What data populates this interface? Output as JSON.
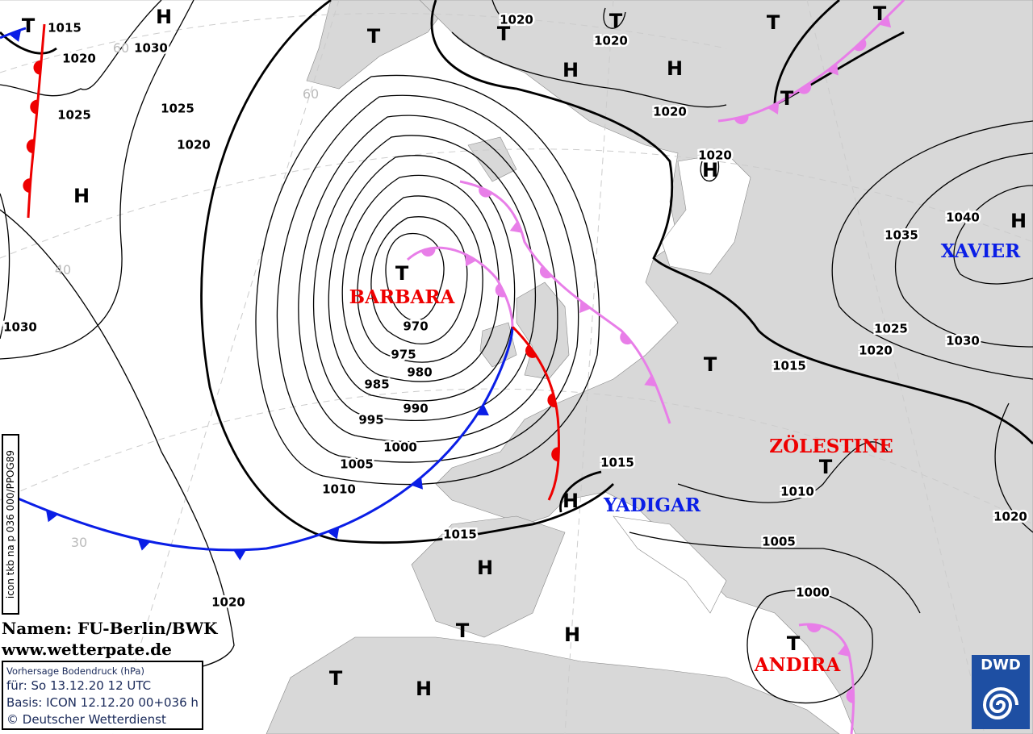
{
  "map": {
    "background": "#ffffff",
    "land_color": "#d8d8d8",
    "colors": {
      "cold_front": "#0a1ee6",
      "warm_front": "#ee0000",
      "occlusion": "#e87ee8",
      "low_name": "#ee0000",
      "high_name": "#0a1ee6"
    },
    "isobar_labels": [
      "1015",
      "1020",
      "1025",
      "1030",
      "1025",
      "1020",
      "1030",
      "970",
      "975",
      "980",
      "985",
      "990",
      "995",
      "1000",
      "1005",
      "1010",
      "1015",
      "1020",
      "1020",
      "1020",
      "1020",
      "1020",
      "1040",
      "1035",
      "1025",
      "1020",
      "1030",
      "1015",
      "1015",
      "1010",
      "1005",
      "1000",
      "1020"
    ],
    "centers": [
      "T",
      "H",
      "H",
      "T",
      "T",
      "T",
      "H",
      "H",
      "T",
      "T",
      "T",
      "H",
      "H",
      "T",
      "T",
      "T",
      "H",
      "H",
      "T",
      "H",
      "T",
      "H",
      "T"
    ],
    "system_names": [
      {
        "name": "BARBARA",
        "type": "low"
      },
      {
        "name": "XAVIER",
        "type": "high"
      },
      {
        "name": "ZÖLESTINE",
        "type": "low"
      },
      {
        "name": "YADIGAR",
        "type": "high"
      },
      {
        "name": "ANDIRA",
        "type": "low"
      }
    ],
    "latitude_labels": [
      "60",
      "60",
      "40",
      "30"
    ]
  },
  "credit": {
    "names": "Namen: FU-Berlin/BWK",
    "url": "www.wetterpate.de"
  },
  "info": {
    "title": "Vorhersage Bodendruck (hPa)",
    "valid": "für:  So 13.12.20  12 UTC",
    "basis": "Basis: ICON  12.12.20 00+036 h",
    "copyright": "© Deutscher Wetterdienst"
  },
  "product_code": "icon tkb na p 036 000/PPOG89",
  "logo": {
    "text": "DWD"
  }
}
